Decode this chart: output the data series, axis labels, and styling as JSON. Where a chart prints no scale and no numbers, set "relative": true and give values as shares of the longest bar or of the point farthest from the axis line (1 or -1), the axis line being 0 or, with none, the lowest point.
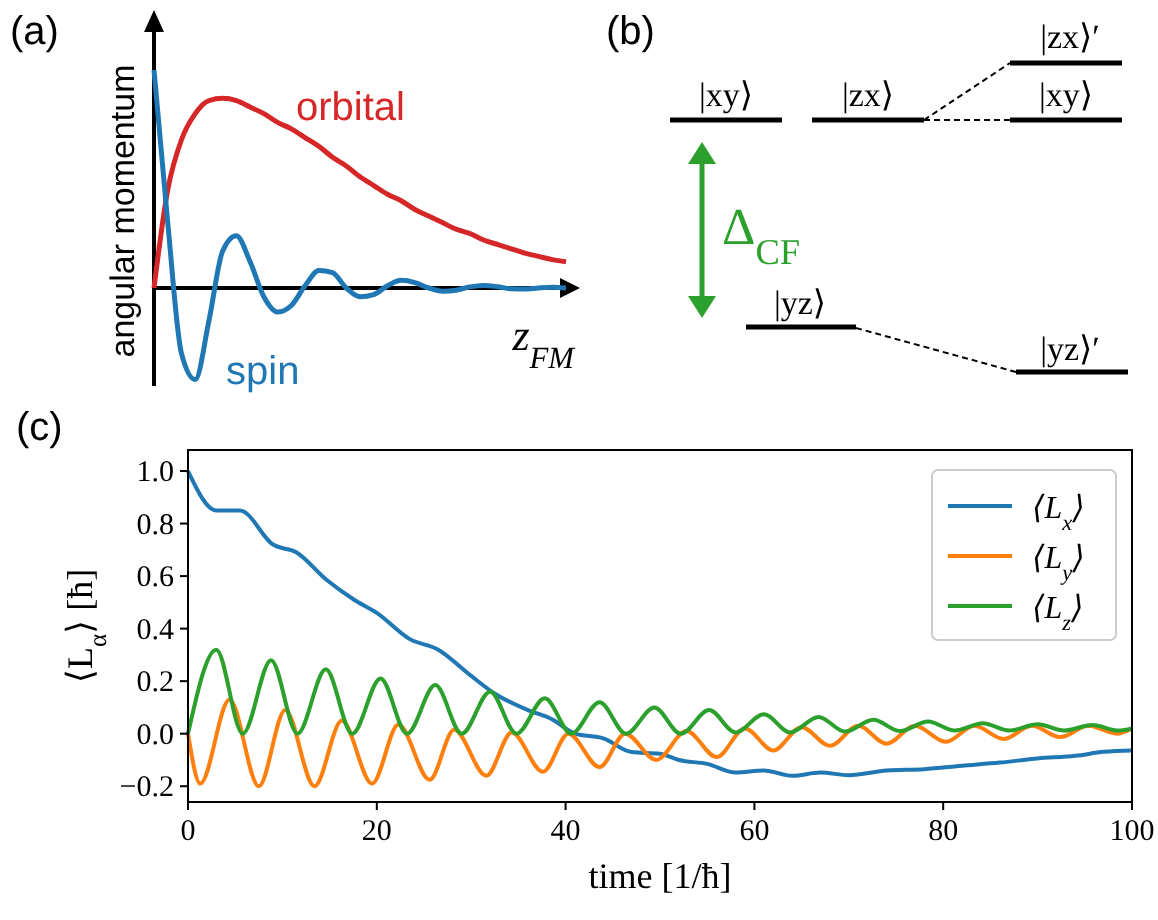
{
  "chart_data": [
    {
      "type": "line",
      "relative": true,
      "legend": false,
      "xlabel": "z$_{FM}$",
      "ylabel": "angular momentum",
      "annotations": [
        "(a)"
      ],
      "categories": [
        null,
        null,
        null,
        null,
        null,
        null,
        null,
        null,
        null,
        null,
        null,
        null,
        null,
        null,
        null,
        null,
        null,
        null,
        null,
        null,
        null,
        null,
        null,
        null,
        null,
        null,
        null,
        null,
        null,
        null,
        null
      ],
      "series": [
        {
          "name": "orbital",
          "color": "#d62728",
          "values": [
            0,
            0.45,
            0.68,
            0.8,
            0.86,
            0.87,
            0.86,
            0.83,
            0.8,
            0.76,
            0.73,
            0.69,
            0.65,
            0.6,
            0.56,
            0.51,
            0.47,
            0.43,
            0.4,
            0.36,
            0.33,
            0.3,
            0.27,
            0.25,
            0.22,
            0.2,
            0.18,
            0.16,
            0.145,
            0.13,
            0.12
          ]
        },
        {
          "name": "spin",
          "color": "#1f77b4",
          "values": [
            1.0,
            0.3,
            -0.3,
            -0.42,
            -0.15,
            0.17,
            0.24,
            0.12,
            -0.04,
            -0.11,
            -0.08,
            0.01,
            0.08,
            0.07,
            0.0,
            -0.04,
            -0.03,
            0.01,
            0.035,
            0.025,
            0.0,
            -0.015,
            -0.01,
            0.005,
            0.012,
            0.006,
            -0.004,
            -0.005,
            0,
            0.003,
            0
          ]
        }
      ]
    },
    {
      "type": "other",
      "annotations": [
        "(b)",
        "|xy⟩",
        "|zx⟩",
        "|xy⟩",
        "|zx⟩′",
        "|yz⟩",
        "|yz⟩′",
        "Δ$_{CF}$"
      ]
    },
    {
      "type": "line",
      "xlabel": "time [1/ħ]",
      "ylabel": "⟨L$_{α}$⟩ [ħ]",
      "annotations": [
        "(c)"
      ],
      "legend": "top right",
      "grid": false,
      "xlim": [
        0,
        100
      ],
      "xticks": [
        0,
        20,
        40,
        60,
        80,
        100
      ],
      "ylim": [
        -0.26,
        1.08
      ],
      "yticks": [
        {
          "value": -0.2,
          "label": "−0.2"
        },
        {
          "value": 0,
          "label": "0.0"
        },
        {
          "value": 0.2,
          "label": "0.2"
        },
        {
          "value": 0.4,
          "label": "0.4"
        },
        {
          "value": 0.6,
          "label": "0.6"
        },
        {
          "value": 0.8,
          "label": "0.8"
        },
        {
          "value": 1.0,
          "label": "1.0"
        }
      ],
      "series": [
        {
          "name": "⟨L$_{x}$⟩",
          "color": "#1f77b4",
          "x": [
            0,
            3,
            5.5,
            9,
            11.5,
            14.7,
            17.6,
            20,
            23.5,
            26.5,
            30,
            32.6,
            36,
            38.5,
            41,
            44,
            47,
            50,
            52,
            55,
            58,
            61,
            64,
            67,
            70,
            74,
            78,
            82,
            86,
            90,
            94,
            97,
            100
          ],
          "values": [
            1.0,
            0.85,
            0.85,
            0.72,
            0.69,
            0.585,
            0.51,
            0.46,
            0.36,
            0.32,
            0.22,
            0.15,
            0.09,
            0.056,
            0,
            -0.018,
            -0.07,
            -0.076,
            -0.1,
            -0.115,
            -0.148,
            -0.14,
            -0.16,
            -0.148,
            -0.158,
            -0.14,
            -0.135,
            -0.122,
            -0.11,
            -0.094,
            -0.084,
            -0.069,
            -0.064
          ]
        },
        {
          "name": "⟨L$_{y}$⟩",
          "color": "#ff7f0e",
          "x": [
            0,
            1.3,
            4.4,
            7.5,
            10.3,
            13.4,
            16.3,
            19.5,
            22.3,
            25.6,
            28.2,
            31.6,
            34.3,
            37.6,
            40.3,
            43.6,
            46.3,
            49.6,
            52.8,
            56,
            59,
            62,
            65,
            68,
            71,
            74,
            77,
            80.3,
            83.3,
            86.4,
            89.4,
            92.4,
            95.4,
            98.4,
            100
          ],
          "values": [
            0,
            -0.19,
            0.13,
            -0.2,
            0.09,
            -0.2,
            0.05,
            -0.19,
            0.035,
            -0.175,
            0.015,
            -0.16,
            0.005,
            -0.145,
            0,
            -0.127,
            0,
            -0.1,
            0.01,
            -0.089,
            0.02,
            -0.064,
            0.025,
            -0.046,
            0.03,
            -0.038,
            0.03,
            -0.031,
            0.03,
            -0.02,
            0.03,
            -0.013,
            0.03,
            0.0,
            0.02
          ]
        },
        {
          "name": "⟨L$_{z}$⟩",
          "color": "#2ca02c",
          "x": [
            0,
            3,
            5.8,
            8.8,
            11.6,
            14.6,
            17.4,
            20.4,
            23.2,
            26.2,
            29,
            32,
            34.8,
            37.8,
            40.6,
            43.6,
            46.4,
            49.4,
            52.2,
            55.2,
            58,
            61,
            63.8,
            66.8,
            69.6,
            72.6,
            75.4,
            78.4,
            81.2,
            84.2,
            87,
            90,
            92.8,
            95.8,
            98.6,
            100
          ],
          "values": [
            0,
            0.32,
            0,
            0.28,
            0,
            0.245,
            0,
            0.21,
            0,
            0.185,
            0,
            0.16,
            0,
            0.135,
            0,
            0.12,
            0,
            0.1,
            0,
            0.09,
            0.005,
            0.074,
            0.005,
            0.064,
            0.008,
            0.053,
            0.01,
            0.046,
            0.012,
            0.04,
            0.012,
            0.036,
            0.012,
            0.033,
            0.012,
            0.02
          ]
        }
      ]
    }
  ]
}
